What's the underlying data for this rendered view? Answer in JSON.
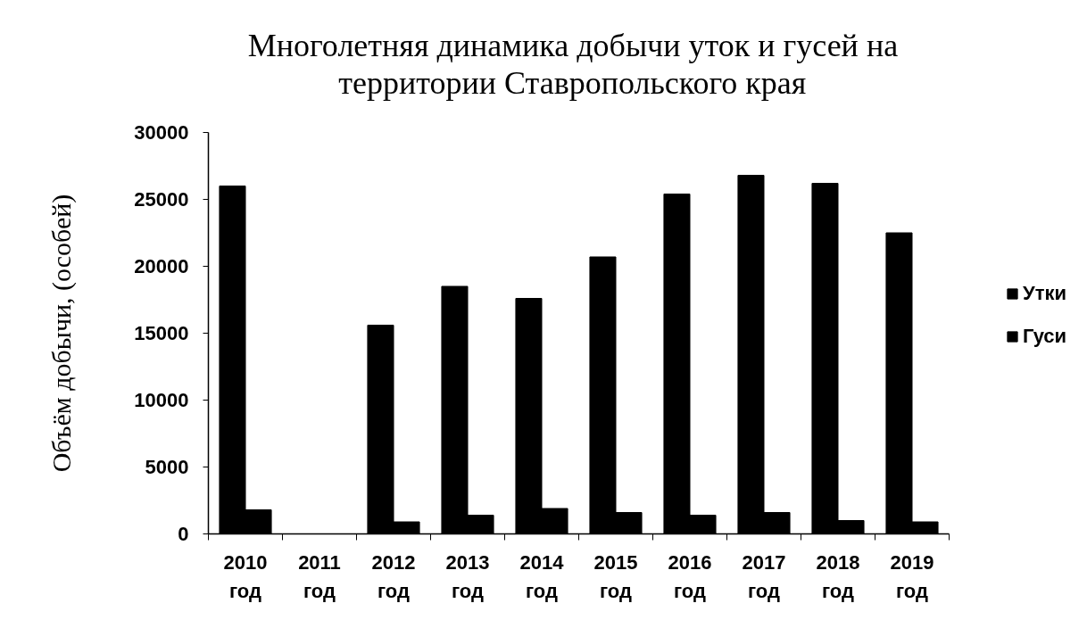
{
  "chart_data": {
    "type": "bar",
    "title": "Многолетняя динамика добычи уток и гусей на территории Ставропольского края",
    "ylabel": "Объём добычи, (особей)",
    "categories": [
      "2010 год",
      "2011 год",
      "2012 год",
      "2013 год",
      "2014 год",
      "2015 год",
      "2016 год",
      "2017 год",
      "2018 год",
      "2019 год"
    ],
    "series": [
      {
        "name": "Утки",
        "color": "#000000",
        "values": [
          26000,
          0,
          15600,
          18500,
          17600,
          20700,
          25400,
          26800,
          26200,
          22500
        ]
      },
      {
        "name": "Гуси",
        "color": "#000000",
        "values": [
          1800,
          0,
          900,
          1400,
          1900,
          1600,
          1400,
          1600,
          1000,
          900
        ]
      }
    ],
    "ylim": [
      0,
      30000
    ],
    "yticks": [
      0,
      5000,
      10000,
      15000,
      20000,
      25000,
      30000
    ],
    "legend": "right"
  }
}
